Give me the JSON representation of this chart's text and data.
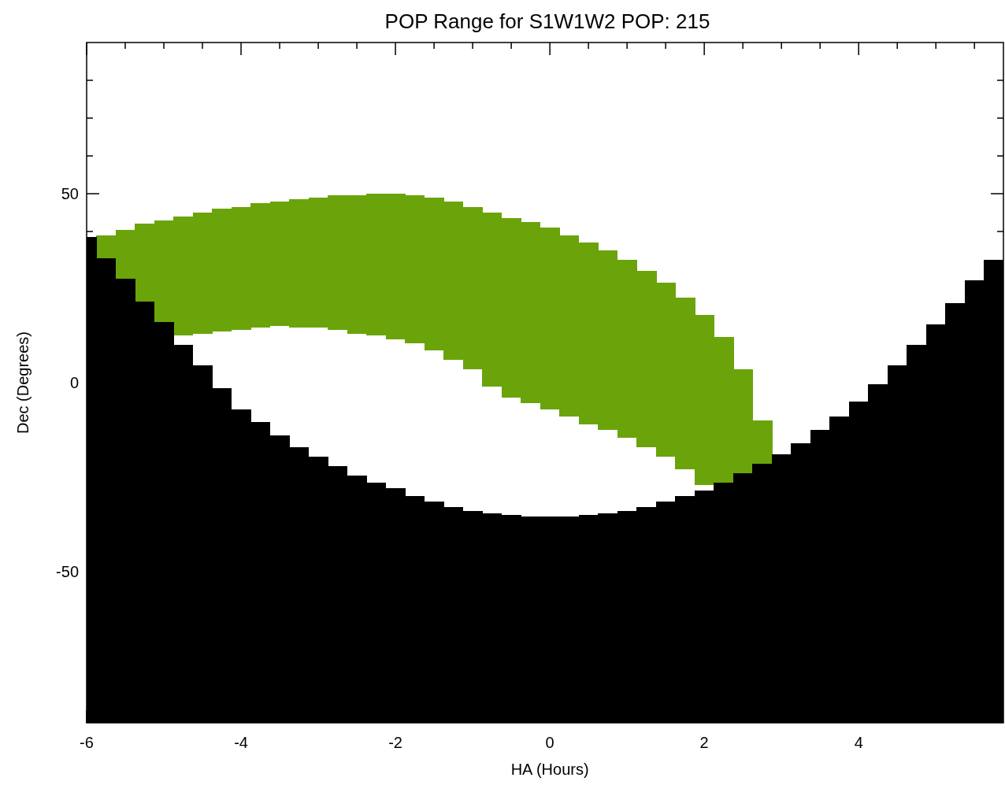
{
  "chart_data": {
    "type": "bar",
    "title": "POP Range for S1W1W2  POP: 215",
    "xlabel": "HA (Hours)",
    "ylabel": "Dec (Degrees)",
    "xlim": [
      -6,
      5.875
    ],
    "ylim": [
      -90,
      90
    ],
    "xticks": [
      -6,
      {
        "value": -5.5,
        "label": null
      },
      {
        "value": -5,
        "label": null
      },
      {
        "value": -4.5,
        "label": null
      },
      -4,
      {
        "value": -3.5,
        "label": null
      },
      {
        "value": -3,
        "label": null
      },
      {
        "value": -2.5,
        "label": null
      },
      -2,
      {
        "value": -1.5,
        "label": null
      },
      {
        "value": -1,
        "label": null
      },
      {
        "value": -0.5,
        "label": null
      },
      0,
      {
        "value": 0.5,
        "label": null
      },
      {
        "value": 1,
        "label": null
      },
      {
        "value": 1.5,
        "label": null
      },
      2,
      {
        "value": 2.5,
        "label": null
      },
      {
        "value": 3,
        "label": null
      },
      {
        "value": 3.5,
        "label": null
      },
      4,
      {
        "value": 4.5,
        "label": null
      },
      {
        "value": 5,
        "label": null
      },
      {
        "value": 5.5,
        "label": null
      }
    ],
    "yticks": [
      {
        "value": -80,
        "label": null
      },
      {
        "value": -70,
        "label": null
      },
      {
        "value": -60,
        "label": null
      },
      -50,
      {
        "value": -40,
        "label": null
      },
      {
        "value": -30,
        "label": null
      },
      {
        "value": -20,
        "label": null
      },
      {
        "value": -10,
        "label": null
      },
      0,
      {
        "value": 10,
        "label": null
      },
      {
        "value": 20,
        "label": null
      },
      {
        "value": 30,
        "label": null
      },
      {
        "value": 40,
        "label": null
      },
      50,
      {
        "value": 60,
        "label": null
      },
      {
        "value": 70,
        "label": null
      },
      {
        "value": 80,
        "label": null
      }
    ],
    "grid": false,
    "series": [
      {
        "color": "#6aa40a",
        "x": [
          -5.75,
          -5.5,
          -5.25,
          -5,
          -4.75,
          -4.5,
          -4.25,
          -4,
          -3.75,
          -3.5,
          -3.25,
          -3,
          -2.75,
          -2.5,
          -2.25,
          -2,
          -1.75,
          -1.5,
          -1.25,
          -1,
          -0.75,
          -0.5,
          -0.25,
          0,
          0.25,
          0.5,
          0.75,
          1,
          1.25,
          1.5,
          1.75,
          2,
          2.25,
          2.5,
          2.75
        ],
        "base": [
          33,
          27.5,
          21.5,
          16,
          12.5,
          13,
          13.5,
          14,
          14.5,
          15,
          14.5,
          14.5,
          14,
          13,
          12.5,
          11.5,
          10.5,
          8.5,
          6,
          3.5,
          -1,
          -4,
          -5.5,
          -7,
          -9,
          -11,
          -12.5,
          -14.5,
          -17,
          -19.5,
          -23,
          -27,
          -26.5,
          -24,
          -21.5
        ],
        "values": [
          6,
          13,
          20.5,
          27,
          31.5,
          32,
          32.5,
          32.5,
          33,
          33,
          34,
          34.5,
          35.5,
          36.5,
          37.5,
          38.5,
          39,
          40.5,
          42,
          43,
          46,
          47.5,
          48,
          48,
          48,
          48,
          47.5,
          47,
          46.5,
          46,
          45.5,
          45,
          38.5,
          27.5,
          11.5
        ]
      },
      {
        "color": "#000000",
        "x": [
          -6,
          -5.75,
          -5.5,
          -5.25,
          -5,
          -4.75,
          -4.5,
          -4.25,
          -4,
          -3.75,
          -3.5,
          -3.25,
          -3,
          -2.75,
          -2.5,
          -2.25,
          -2,
          -1.75,
          -1.5,
          -1.25,
          -1,
          -0.75,
          -0.5,
          -0.25,
          0,
          0.25,
          0.5,
          0.75,
          1,
          1.25,
          1.5,
          1.75,
          2,
          2.25,
          2.5,
          2.75,
          3,
          3.25,
          3.5,
          3.75,
          4,
          4.25,
          4.5,
          4.75,
          5,
          5.25,
          5.5,
          5.75
        ],
        "base": [
          -90,
          -90,
          -90,
          -90,
          -90,
          -90,
          -90,
          -90,
          -90,
          -90,
          -90,
          -90,
          -90,
          -90,
          -90,
          -90,
          -90,
          -90,
          -90,
          -90,
          -90,
          -90,
          -90,
          -90,
          -90,
          -90,
          -90,
          -90,
          -90,
          -90,
          -90,
          -90,
          -90,
          -90,
          -90,
          -90,
          -90,
          -90,
          -90,
          -90,
          -90,
          -90,
          -90,
          -90,
          -90,
          -90,
          -90,
          -90
        ],
        "values": [
          128.5,
          123,
          117.5,
          111.5,
          106,
          100,
          94.5,
          88.5,
          83,
          79.5,
          76,
          73,
          70.5,
          68,
          65.5,
          63.5,
          62,
          60,
          58.5,
          57,
          56,
          55.5,
          55,
          54.5,
          54.5,
          54.5,
          55,
          55.5,
          56,
          57,
          58.5,
          60,
          61.5,
          63.5,
          66,
          68.5,
          71,
          74,
          77.5,
          81,
          85,
          89.5,
          94.5,
          100,
          105.5,
          111,
          117,
          122.5
        ]
      }
    ]
  }
}
